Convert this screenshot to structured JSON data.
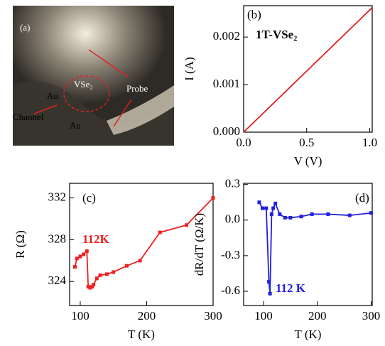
{
  "photo": {
    "panel_label": "(a)",
    "labels": [
      "VSe₂",
      "Au",
      "Au",
      "Channel",
      "Probe"
    ]
  },
  "chart_data": [
    {
      "type": "line",
      "panel_label": "(b)",
      "xlabel": "V (V)",
      "ylabel": "I (A)",
      "annotation": "1T-VSe₂",
      "x": [
        0,
        1.02
      ],
      "series": [
        {
          "color": "#e02020",
          "values": [
            0,
            0.00262
          ]
        }
      ],
      "xlim": [
        0,
        1.02
      ],
      "ylim": [
        0,
        0.00266
      ],
      "xticks": [
        {
          "value": 0,
          "label": "0.0"
        },
        {
          "value": 0.5,
          "label": "0.5"
        },
        {
          "value": 1,
          "label": "1.0"
        }
      ],
      "yticks": [
        {
          "value": 0,
          "label": "0.000"
        },
        {
          "value": 0.001,
          "label": "0.001"
        },
        {
          "value": 0.002,
          "label": "0.002"
        }
      ],
      "markers": false
    },
    {
      "type": "line",
      "panel_label": "(c)",
      "xlabel": "T (K)",
      "ylabel": "R (Ω)",
      "annotation": "112K",
      "x": [
        92,
        95,
        100,
        105,
        110,
        112,
        115,
        118,
        120,
        125,
        130,
        140,
        150,
        170,
        190,
        220,
        260,
        300
      ],
      "series": [
        {
          "color": "#f02020",
          "values": [
            325.4,
            326.2,
            326.4,
            326.6,
            326.9,
            323.5,
            323.4,
            323.5,
            323.7,
            324.3,
            324.6,
            324.7,
            324.9,
            325.5,
            326.0,
            328.7,
            329.4,
            332.0
          ]
        }
      ],
      "xlim": [
        84,
        300
      ],
      "ylim": [
        321.7,
        333.4
      ],
      "xticks": [
        100,
        200,
        300
      ],
      "yticks": [
        324,
        328,
        332
      ],
      "markers": true
    },
    {
      "type": "line",
      "panel_label": "(d)",
      "xlabel": "T (K)",
      "ylabel": "dR/dT (Ω/K)",
      "annotation": "112 K",
      "x": [
        92,
        98,
        105,
        110,
        112,
        115,
        118,
        122,
        130,
        140,
        150,
        170,
        190,
        220,
        260,
        300
      ],
      "series": [
        {
          "color": "#2020e0",
          "values": [
            0.15,
            0.1,
            0.1,
            -0.52,
            -0.62,
            0.05,
            0.1,
            0.14,
            0.05,
            0.02,
            0.02,
            0.03,
            0.05,
            0.05,
            0.04,
            0.06
          ]
        }
      ],
      "xlim": [
        63,
        302
      ],
      "ylim": [
        -0.72,
        0.31
      ],
      "xticks": [
        100,
        200,
        300
      ],
      "yticks": [
        0.3,
        {
          "value": 0,
          "label": "0.0"
        },
        -0.3,
        -0.6
      ],
      "markers": true
    }
  ]
}
